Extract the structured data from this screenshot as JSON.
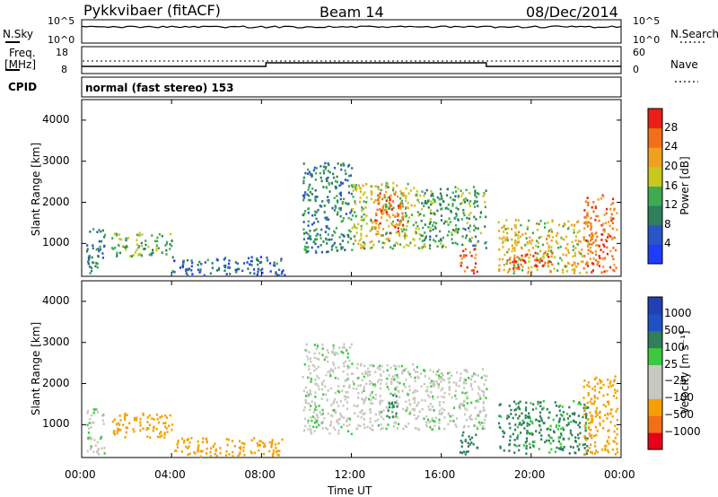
{
  "header": {
    "radar": "Pykkvibaer (fitACF)",
    "beam": "Beam 14",
    "date": "08/Dec/2014"
  },
  "top_panels": {
    "nsky_label": "N.Sky",
    "nsky_ticks": [
      "10^5",
      "10^0"
    ],
    "nsearch_label": "N.Search",
    "nsearch_ticks": [
      "10^5",
      "10^0"
    ],
    "freq_label_1": "Freq.",
    "freq_label_2": "[MHz]",
    "freq_ticks": [
      "18",
      "8"
    ],
    "nave_label": "Nave",
    "nave_ticks": [
      "60",
      "0"
    ],
    "cpid_label": "CPID",
    "cpid_text": "normal (fast stereo) 153"
  },
  "colors": {
    "power_scale": [
      "#1e3cff",
      "#2a55c8",
      "#2e7f5a",
      "#3cab52",
      "#c8c820",
      "#f0a020",
      "#f07018",
      "#e82018"
    ],
    "velocity_scale": [
      "#e80018",
      "#f07018",
      "#f5a000",
      "#c8c8c0",
      "#c8c8c0",
      "#3cc840",
      "#2e7f5a",
      "#1e50c8",
      "#2040b4"
    ]
  },
  "chart_data": [
    {
      "type": "heatmap",
      "name_hint": "power",
      "ylabel": "Slant Range [km]",
      "yticks": [
        "4000",
        "3000",
        "2000",
        "1000"
      ],
      "ylim": [
        200,
        4500
      ],
      "xlim": [
        0,
        24
      ],
      "colorbar_label": "Power [dB]",
      "colorbar_ticks": [
        "28",
        "24",
        "20",
        "16",
        "12",
        "8",
        "4"
      ],
      "colorbar_range": [
        0,
        30
      ],
      "regions": [
        {
          "t0": 1.3,
          "t1": 4.0,
          "r0": 700,
          "r1": 1300,
          "value": 14
        },
        {
          "t0": 0.2,
          "t1": 1.0,
          "r0": 300,
          "r1": 1400,
          "value": 10
        },
        {
          "t0": 4.0,
          "t1": 9.0,
          "r0": 250,
          "r1": 700,
          "value": 7
        },
        {
          "t0": 9.8,
          "t1": 12.0,
          "r0": 800,
          "r1": 3000,
          "value": 10
        },
        {
          "t0": 12.0,
          "t1": 15.0,
          "r0": 900,
          "r1": 2500,
          "value": 16
        },
        {
          "t0": 13.0,
          "t1": 14.3,
          "r0": 1200,
          "r1": 2300,
          "value": 24
        },
        {
          "t0": 15.0,
          "t1": 18.0,
          "r0": 900,
          "r1": 2400,
          "value": 12
        },
        {
          "t0": 16.8,
          "t1": 17.6,
          "r0": 300,
          "r1": 900,
          "value": 26
        },
        {
          "t0": 18.5,
          "t1": 22.5,
          "r0": 300,
          "r1": 1600,
          "value": 18
        },
        {
          "t0": 19.0,
          "t1": 21.0,
          "r0": 400,
          "r1": 800,
          "value": 27
        },
        {
          "t0": 22.3,
          "t1": 23.8,
          "r0": 300,
          "r1": 2200,
          "value": 24
        }
      ]
    },
    {
      "type": "heatmap",
      "name_hint": "velocity",
      "ylabel": "Slant Range [km]",
      "yticks": [
        "4000",
        "3000",
        "2000",
        "1000"
      ],
      "ylim": [
        200,
        4500
      ],
      "xlim": [
        0,
        24
      ],
      "xticks": [
        "00:00",
        "04:00",
        "08:00",
        "12:00",
        "16:00",
        "20:00",
        "00:00"
      ],
      "xlabel": "Time UT",
      "colorbar_label": "Velocity [m s⁻¹]",
      "colorbar_ticks": [
        "1000",
        "500",
        "100",
        "25",
        "−25",
        "−100",
        "−500",
        "−1000"
      ],
      "regions": [
        {
          "t0": 1.3,
          "t1": 4.0,
          "r0": 700,
          "r1": 1300,
          "value": -150
        },
        {
          "t0": 0.2,
          "t1": 1.0,
          "r0": 300,
          "r1": 1400,
          "value": 0
        },
        {
          "t0": 4.0,
          "t1": 9.0,
          "r0": 250,
          "r1": 700,
          "value": -200
        },
        {
          "t0": 9.8,
          "t1": 12.0,
          "r0": 800,
          "r1": 3000,
          "value": 0
        },
        {
          "t0": 12.0,
          "t1": 15.0,
          "r0": 900,
          "r1": 2500,
          "value": 0
        },
        {
          "t0": 13.5,
          "t1": 14.0,
          "r0": 1200,
          "r1": 1800,
          "value": 300
        },
        {
          "t0": 15.0,
          "t1": 18.0,
          "r0": 900,
          "r1": 2400,
          "value": 0
        },
        {
          "t0": 16.8,
          "t1": 17.6,
          "r0": 300,
          "r1": 900,
          "value": 150
        },
        {
          "t0": 18.5,
          "t1": 22.5,
          "r0": 300,
          "r1": 1600,
          "value": 120
        },
        {
          "t0": 22.3,
          "t1": 23.8,
          "r0": 300,
          "r1": 2200,
          "value": -300
        }
      ]
    }
  ]
}
